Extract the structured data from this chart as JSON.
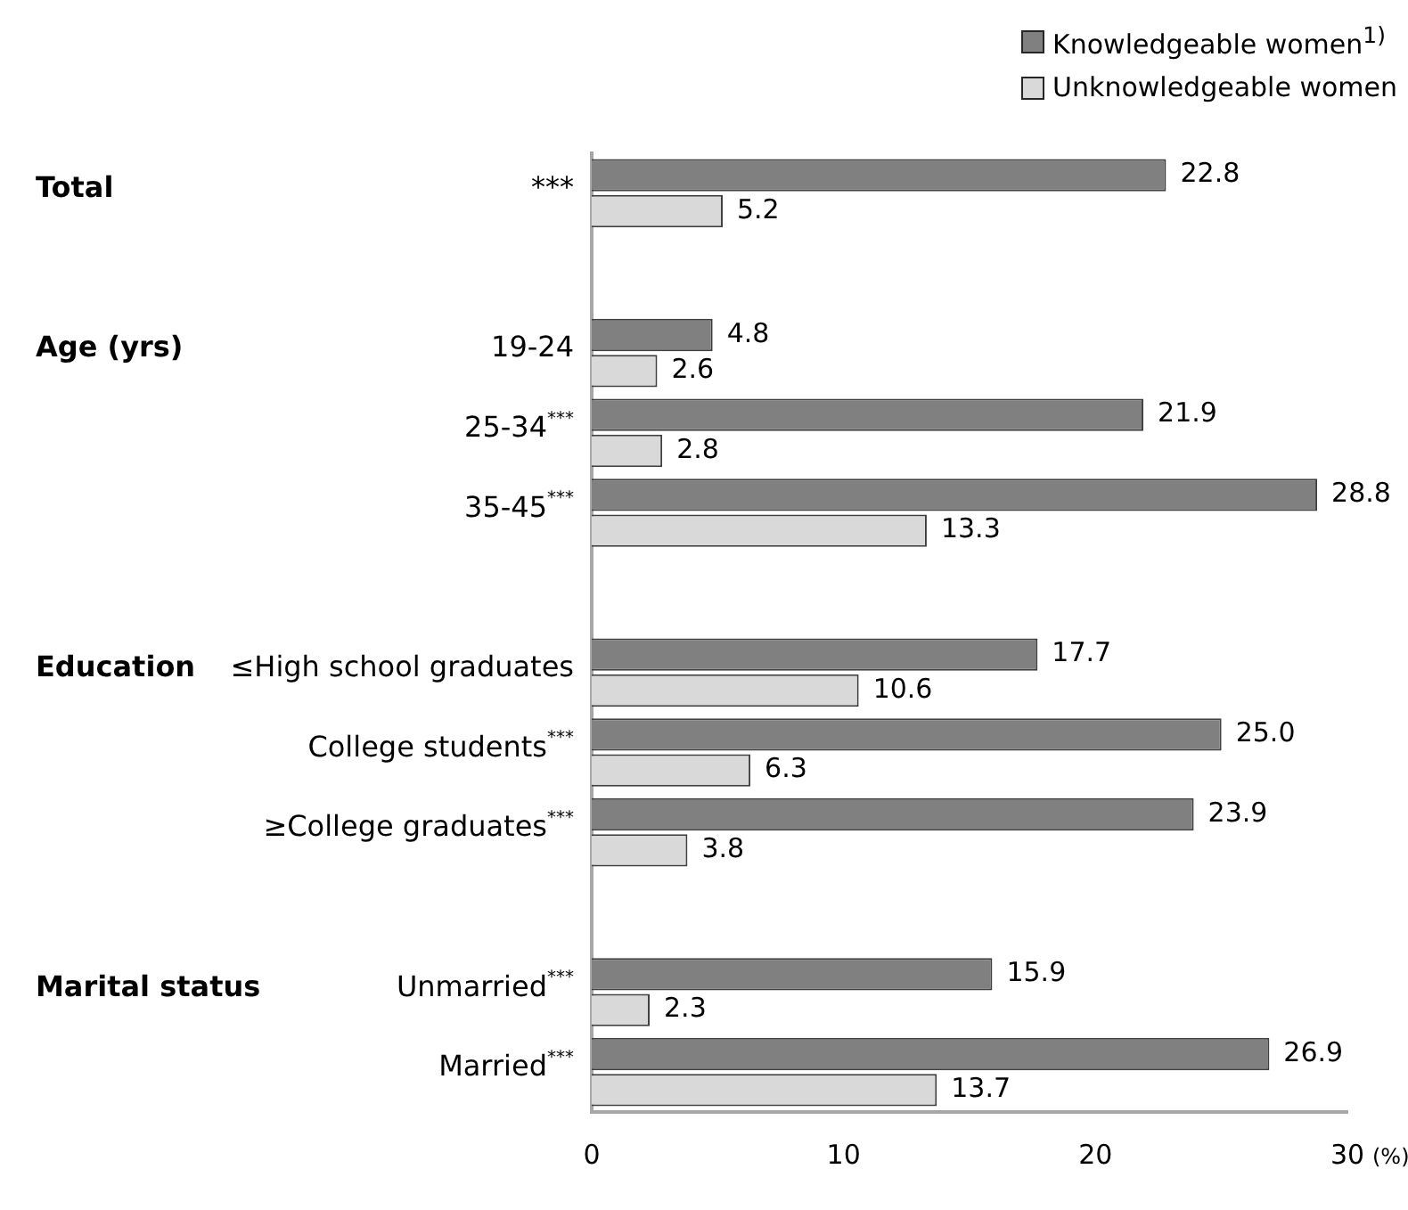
{
  "chart_data": {
    "type": "bar",
    "orientation": "horizontal",
    "categories": [
      "***",
      null,
      "19-24",
      "25-34$^{***}$",
      "35-45$^{***}$",
      null,
      "≤High school graduates",
      "College students$^{***}$",
      "≥College graduates$^{***}$",
      null,
      "Unmarried$^{***}$",
      "Married$^{***}$"
    ],
    "series": [
      {
        "name": "Knowledgeable women$^{1)}$",
        "color": "#808080",
        "values": [
          22.8,
          null,
          4.8,
          21.9,
          28.8,
          null,
          17.7,
          25.0,
          23.9,
          null,
          15.9,
          26.9
        ],
        "value_labels": [
          "22.8",
          null,
          "4.8",
          "21.9",
          "28.8",
          null,
          "17.7",
          "25.0",
          "23.9",
          null,
          "15.9",
          "26.9"
        ]
      },
      {
        "name": "Unknowledgeable women",
        "color": "#d9d9d9",
        "values": [
          5.2,
          null,
          2.6,
          2.8,
          13.3,
          null,
          10.6,
          6.3,
          3.8,
          null,
          2.3,
          13.7
        ],
        "value_labels": [
          "5.2",
          null,
          "2.6",
          "2.8",
          "13.3",
          null,
          "10.6",
          "6.3",
          "3.8",
          null,
          "2.3",
          "13.7"
        ]
      }
    ],
    "xlabel": "(%)",
    "xlim": [
      0,
      30
    ],
    "xticks": [
      0,
      10,
      20,
      30
    ],
    "annotations": [
      "Total",
      "Age (yrs)",
      "Education",
      "Marital status"
    ],
    "grid": false,
    "legend": "top right"
  }
}
